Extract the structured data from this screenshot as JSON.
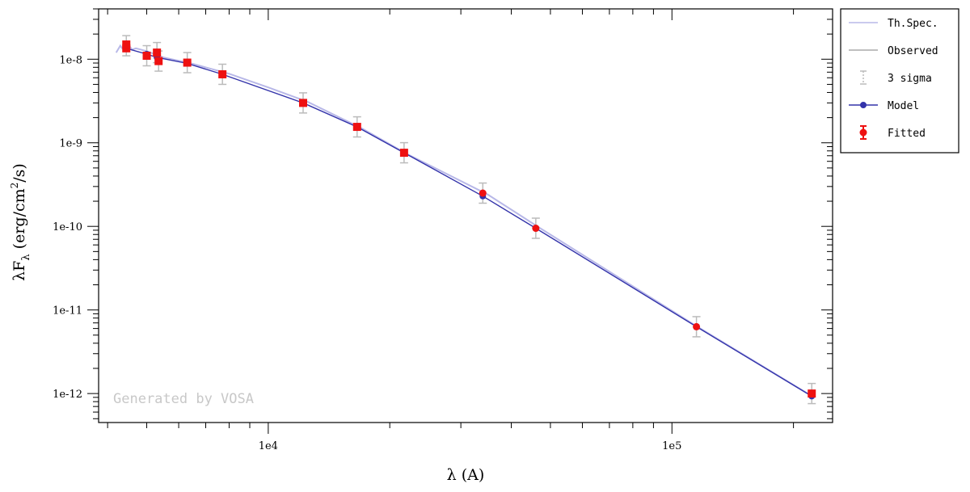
{
  "chart_data": {
    "type": "scatter",
    "x_scale": "log",
    "y_scale": "log",
    "xlabel": "λ (A)",
    "ylabel": "λF_λ (erg/cm^2/s)",
    "xlim": [
      3800,
      250000
    ],
    "ylim": [
      4.5e-13,
      4e-08
    ],
    "x_tick_labels": [
      {
        "value": 10000,
        "label": "1e4"
      },
      {
        "value": 100000,
        "label": "1e5"
      }
    ],
    "y_tick_labels": [
      {
        "value": 1e-08,
        "label": "1e-8"
      },
      {
        "value": 1e-09,
        "label": "1e-9"
      },
      {
        "value": 1e-10,
        "label": "1e-10"
      },
      {
        "value": 1e-11,
        "label": "1e-11"
      },
      {
        "value": 1e-12,
        "label": "1e-12"
      }
    ],
    "legend_position": "outside-right",
    "series": [
      {
        "name": "Th.Spec.",
        "color": "#b8b8e8",
        "style": "line",
        "x": [
          4200,
          4300,
          4400,
          4500,
          4600,
          4700,
          5000,
          5500,
          6500,
          8000,
          10000,
          12500,
          17000,
          22000,
          35000,
          47000,
          115000,
          220000
        ],
        "y": [
          1.2e-08,
          1.45e-08,
          1.25e-08,
          1.5e-08,
          1.3e-08,
          1.35e-08,
          1.25e-08,
          1.05e-08,
          8.8e-09,
          6.7e-09,
          4.6e-09,
          3.1e-09,
          1.5e-09,
          7.4e-10,
          2.4e-10,
          9.6e-11,
          6.4e-12,
          9.6e-13
        ]
      },
      {
        "name": "Observed",
        "color": "#aaaaaa",
        "style": "line",
        "x": [],
        "y": []
      },
      {
        "name": "3 sigma",
        "color": "#bbbbbb",
        "style": "errorbar",
        "x": [
          4450,
          5000,
          5300,
          5350,
          6300,
          7700,
          12200,
          16600,
          21700,
          34000,
          46000,
          115000,
          222000
        ],
        "y": [
          1.45e-08,
          1.1e-08,
          1.2e-08,
          9.5e-09,
          9.1e-09,
          6.6e-09,
          3e-09,
          1.55e-09,
          7.6e-10,
          2.5e-10,
          9.5e-11,
          6.3e-12,
          1e-12
        ],
        "err_factor": 1.32
      },
      {
        "name": "Model",
        "color": "#3333aa",
        "style": "line-markers",
        "x": [
          4450,
          5000,
          5300,
          6300,
          7700,
          12200,
          16600,
          21700,
          34000,
          46000,
          115000,
          222000
        ],
        "y": [
          1.35e-08,
          1.15e-08,
          1.05e-08,
          8.9e-09,
          6.6e-09,
          3e-09,
          1.55e-09,
          7.6e-10,
          2.3e-10,
          9.5e-11,
          6.3e-12,
          9.3e-13
        ]
      },
      {
        "name": "Fitted",
        "color": "#ee1111",
        "style": "markers",
        "x": [
          4450,
          4450,
          5000,
          5300,
          5350,
          6300,
          7700,
          12200,
          16600,
          21700,
          34000,
          46000,
          115000,
          222000
        ],
        "y": [
          1.35e-08,
          1.5e-08,
          1.1e-08,
          1.2e-08,
          9.5e-09,
          9.1e-09,
          6.6e-09,
          3e-09,
          1.55e-09,
          7.6e-10,
          2.5e-10,
          9.5e-11,
          6.3e-12,
          1e-12
        ]
      }
    ],
    "watermark": "Generated by VOSA"
  }
}
